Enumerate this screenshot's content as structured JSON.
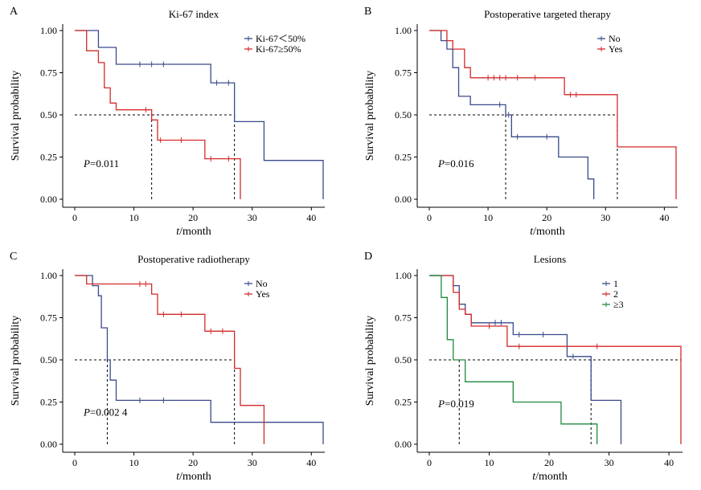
{
  "chart_data": [
    {
      "id": "A",
      "type": "line",
      "panel_letter": "A",
      "title": "Ki-67 index",
      "xlabel_italic": "t",
      "xlabel_rest": "/month",
      "ylabel": "Survival probability",
      "xlim": [
        0,
        42
      ],
      "ylim": [
        0,
        1
      ],
      "xticks": [
        0,
        10,
        20,
        30,
        40
      ],
      "xtick_labels": [
        "0",
        "10",
        "20",
        "30",
        "40"
      ],
      "yticks": [
        0,
        0.25,
        0.5,
        0.75,
        1
      ],
      "ytick_labels": [
        "0.00",
        "0.25",
        "0.50",
        "0.75",
        "1.00"
      ],
      "p_label_italic": "P",
      "p_label_rest": "=0.011",
      "p_pos": [
        1.5,
        0.19
      ],
      "legend_position": "top-right",
      "median_line": {
        "y": 0.5,
        "x_end": 27,
        "drops": [
          13,
          27
        ]
      },
      "series": [
        {
          "name": "Ki-67＜50%",
          "color": "#3a4a8c",
          "steps": [
            [
              0,
              1.0
            ],
            [
              4,
              0.9
            ],
            [
              7,
              0.8
            ],
            [
              23,
              0.69
            ],
            [
              27,
              0.46
            ],
            [
              32,
              0.23
            ],
            [
              42,
              0.23
            ],
            [
              42,
              0.0
            ]
          ],
          "censors": [
            [
              11,
              0.8
            ],
            [
              13,
              0.8
            ],
            [
              15,
              0.8
            ],
            [
              24,
              0.69
            ],
            [
              26,
              0.69
            ]
          ]
        },
        {
          "name": "Ki-67≥50%",
          "color": "#d42a2a",
          "steps": [
            [
              0,
              1.0
            ],
            [
              2,
              0.88
            ],
            [
              4,
              0.81
            ],
            [
              5,
              0.66
            ],
            [
              6,
              0.57
            ],
            [
              7,
              0.53
            ],
            [
              13,
              0.47
            ],
            [
              14,
              0.35
            ],
            [
              22,
              0.24
            ],
            [
              28,
              0.0
            ]
          ],
          "censors": [
            [
              12,
              0.53
            ],
            [
              14.5,
              0.35
            ],
            [
              18,
              0.35
            ],
            [
              23,
              0.24
            ],
            [
              26,
              0.24
            ]
          ]
        }
      ]
    },
    {
      "id": "B",
      "type": "line",
      "panel_letter": "B",
      "title": "Postoperative targeted therapy",
      "xlabel_italic": "t",
      "xlabel_rest": "/month",
      "ylabel": "Survival probability",
      "xlim": [
        0,
        42
      ],
      "ylim": [
        0,
        1
      ],
      "xticks": [
        0,
        10,
        20,
        30,
        40
      ],
      "xtick_labels": [
        "0",
        "10",
        "20",
        "30",
        "40"
      ],
      "yticks": [
        0,
        0.25,
        0.5,
        0.75,
        1
      ],
      "ytick_labels": [
        "0.00",
        "0.25",
        "0.50",
        "0.75",
        "1.00"
      ],
      "p_label_italic": "P",
      "p_label_rest": "=0.016",
      "p_pos": [
        1.5,
        0.19
      ],
      "legend_position": "top-right",
      "median_line": {
        "y": 0.5,
        "x_end": 32,
        "drops": [
          13,
          32
        ]
      },
      "series": [
        {
          "name": "No",
          "color": "#3a4a8c",
          "steps": [
            [
              0,
              1.0
            ],
            [
              2,
              0.94
            ],
            [
              3,
              0.89
            ],
            [
              4,
              0.78
            ],
            [
              5,
              0.61
            ],
            [
              7,
              0.56
            ],
            [
              13,
              0.5
            ],
            [
              14,
              0.37
            ],
            [
              22,
              0.25
            ],
            [
              27,
              0.12
            ],
            [
              28,
              0.0
            ]
          ],
          "censors": [
            [
              12,
              0.56
            ],
            [
              13.5,
              0.5
            ],
            [
              15,
              0.37
            ],
            [
              20,
              0.37
            ]
          ]
        },
        {
          "name": "Yes",
          "color": "#d42a2a",
          "steps": [
            [
              0,
              1.0
            ],
            [
              3,
              0.94
            ],
            [
              4,
              0.89
            ],
            [
              6,
              0.78
            ],
            [
              7,
              0.72
            ],
            [
              23,
              0.62
            ],
            [
              32,
              0.31
            ],
            [
              42,
              0.31
            ],
            [
              42,
              0.0
            ]
          ],
          "censors": [
            [
              10,
              0.72
            ],
            [
              11,
              0.72
            ],
            [
              12,
              0.72
            ],
            [
              13,
              0.72
            ],
            [
              15,
              0.72
            ],
            [
              18,
              0.72
            ],
            [
              24,
              0.62
            ],
            [
              25,
              0.62
            ]
          ]
        }
      ]
    },
    {
      "id": "C",
      "type": "line",
      "panel_letter": "C",
      "title": "Postoperative radiotherapy",
      "xlabel_italic": "t",
      "xlabel_rest": "/month",
      "ylabel": "Survival probability",
      "xlim": [
        0,
        42
      ],
      "ylim": [
        0,
        1
      ],
      "xticks": [
        0,
        10,
        20,
        30,
        40
      ],
      "xtick_labels": [
        "0",
        "10",
        "20",
        "30",
        "40"
      ],
      "yticks": [
        0,
        0.25,
        0.5,
        0.75,
        1
      ],
      "ytick_labels": [
        "0.00",
        "0.25",
        "0.50",
        "0.75",
        "1.00"
      ],
      "p_label_italic": "P",
      "p_label_rest": "=0.002 4",
      "p_pos": [
        1.5,
        0.17
      ],
      "legend_position": "top-right",
      "median_line": {
        "y": 0.5,
        "x_end": 27,
        "drops": [
          5.5,
          27
        ]
      },
      "series": [
        {
          "name": "No",
          "color": "#3a4a8c",
          "steps": [
            [
              0,
              1.0
            ],
            [
              3,
              0.94
            ],
            [
              4,
              0.88
            ],
            [
              4.5,
              0.69
            ],
            [
              5.5,
              0.5
            ],
            [
              6,
              0.38
            ],
            [
              7,
              0.26
            ],
            [
              23,
              0.13
            ],
            [
              42,
              0.13
            ],
            [
              42,
              0.0
            ]
          ],
          "censors": [
            [
              11,
              0.26
            ],
            [
              15,
              0.26
            ]
          ]
        },
        {
          "name": "Yes",
          "color": "#d42a2a",
          "steps": [
            [
              0,
              1.0
            ],
            [
              2,
              0.95
            ],
            [
              13,
              0.89
            ],
            [
              14,
              0.77
            ],
            [
              22,
              0.67
            ],
            [
              27,
              0.45
            ],
            [
              28,
              0.23
            ],
            [
              32,
              0.0
            ]
          ],
          "censors": [
            [
              11,
              0.95
            ],
            [
              12,
              0.95
            ],
            [
              15,
              0.77
            ],
            [
              18,
              0.77
            ],
            [
              23,
              0.67
            ],
            [
              25,
              0.67
            ]
          ]
        }
      ]
    },
    {
      "id": "D",
      "type": "line",
      "panel_letter": "D",
      "title": "Lesions",
      "xlabel_italic": "t",
      "xlabel_rest": "/month",
      "ylabel": "Survival probability",
      "xlim": [
        0,
        42
      ],
      "ylim": [
        0,
        1
      ],
      "xticks": [
        0,
        10,
        20,
        30,
        40
      ],
      "xtick_labels": [
        "0",
        "10",
        "20",
        "30",
        "40"
      ],
      "yticks": [
        0,
        0.25,
        0.5,
        0.75,
        1
      ],
      "ytick_labels": [
        "0.00",
        "0.25",
        "0.50",
        "0.75",
        "1.00"
      ],
      "p_label_italic": "P",
      "p_label_rest": "=0.019",
      "p_pos": [
        1.5,
        0.22
      ],
      "legend_position": "top-right",
      "median_line": {
        "y": 0.5,
        "x_end": 42,
        "drops": [
          5,
          27
        ]
      },
      "series": [
        {
          "name": "1",
          "color": "#3a4a8c",
          "steps": [
            [
              0,
              1.0
            ],
            [
              4,
              0.94
            ],
            [
              5,
              0.83
            ],
            [
              6,
              0.77
            ],
            [
              7,
              0.72
            ],
            [
              14,
              0.65
            ],
            [
              23,
              0.52
            ],
            [
              27,
              0.26
            ],
            [
              32,
              0.0
            ]
          ],
          "censors": [
            [
              11,
              0.72
            ],
            [
              12,
              0.72
            ],
            [
              15,
              0.65
            ],
            [
              19,
              0.65
            ],
            [
              24,
              0.52
            ]
          ]
        },
        {
          "name": "2",
          "color": "#d42a2a",
          "steps": [
            [
              0,
              1.0
            ],
            [
              4,
              0.9
            ],
            [
              5,
              0.8
            ],
            [
              6,
              0.77
            ],
            [
              7,
              0.7
            ],
            [
              13,
              0.58
            ],
            [
              42,
              0.58
            ],
            [
              42,
              0.0
            ]
          ],
          "censors": [
            [
              10,
              0.7
            ],
            [
              15,
              0.58
            ],
            [
              28,
              0.58
            ]
          ]
        },
        {
          "name": "≥3",
          "color": "#1e8a3c",
          "steps": [
            [
              0,
              1.0
            ],
            [
              2,
              0.87
            ],
            [
              3,
              0.62
            ],
            [
              4,
              0.5
            ],
            [
              6,
              0.37
            ],
            [
              14,
              0.25
            ],
            [
              22,
              0.12
            ],
            [
              28,
              0.0
            ]
          ],
          "censors": []
        }
      ]
    }
  ]
}
